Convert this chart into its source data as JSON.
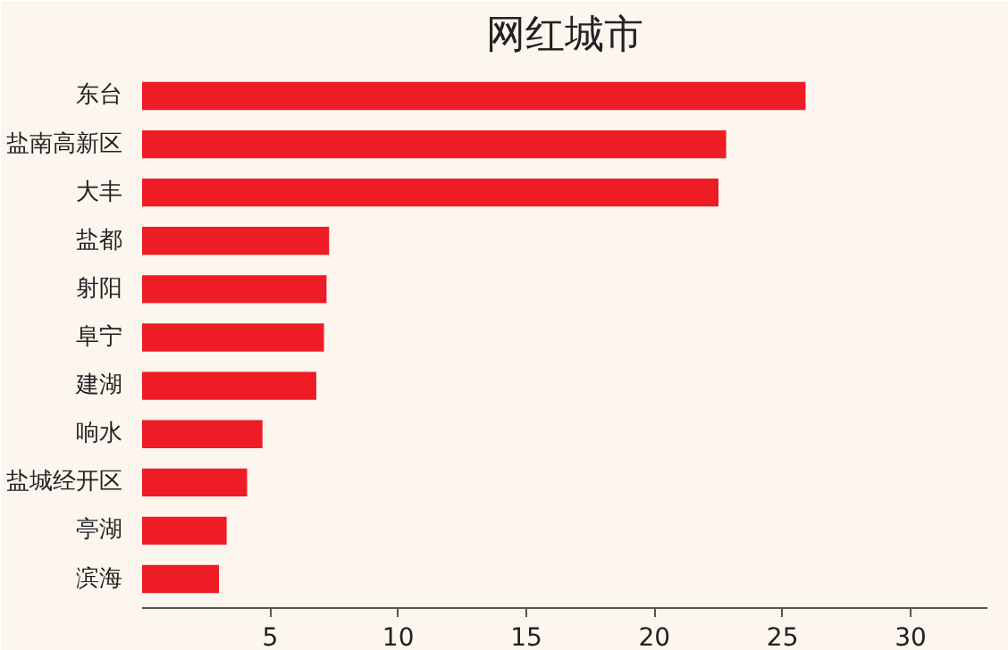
{
  "chart_data": {
    "type": "bar",
    "orientation": "horizontal",
    "title": "网红城市",
    "categories": [
      "东台",
      "盐南高新区",
      "大丰",
      "盐都",
      "射阳",
      "阜宁",
      "建湖",
      "响水",
      "盐城经开区",
      "亭湖",
      "滨海"
    ],
    "values": [
      25.9,
      22.8,
      22.5,
      7.3,
      7.2,
      7.1,
      6.8,
      4.7,
      4.1,
      3.3,
      3.0
    ],
    "color": "#ee1c25",
    "xlim": [
      0,
      33
    ],
    "xticks": [
      5,
      10,
      15,
      20,
      25,
      30
    ],
    "grid": false
  }
}
